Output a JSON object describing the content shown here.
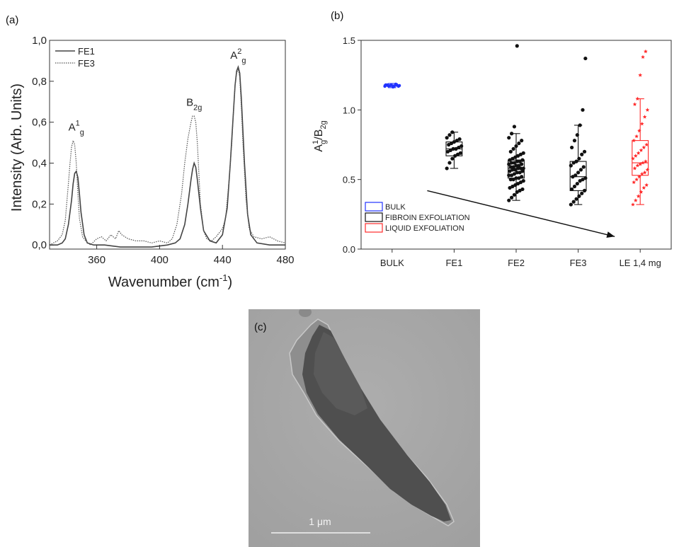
{
  "chart_data": [
    {
      "type": "line",
      "panel_label": "(a)",
      "xlabel": "Wavenumber (cm",
      "xlabel_sup": "-1",
      "xlabel_end": ")",
      "ylabel": "Intensity (Arb. Units)",
      "xlim": [
        330,
        480
      ],
      "ylim": [
        -0.02,
        1.0
      ],
      "x_ticks": [
        360,
        400,
        440,
        480
      ],
      "x_tick_labels": [
        "360",
        "400",
        "440",
        "480"
      ],
      "y_ticks": [
        0.0,
        0.2,
        0.4,
        0.6,
        0.8,
        1.0
      ],
      "y_tick_labels": [
        "0,0",
        "0,2",
        "0,4",
        "0,6",
        "0,8",
        "1,0"
      ],
      "legend_position": "top-left",
      "annotations": [
        {
          "base": "A",
          "sup": "1",
          "sub": "g",
          "x": 347,
          "y": 0.56
        },
        {
          "base": "B",
          "sup": "",
          "sub": "2g",
          "x": 422,
          "y": 0.68
        },
        {
          "base": "A",
          "sup": "2",
          "sub": "g",
          "x": 450,
          "y": 0.91
        }
      ],
      "series": [
        {
          "name": "FE1",
          "line_style": "solid",
          "color": "#444444",
          "x": [
            330,
            335,
            338,
            340,
            342,
            344,
            345,
            346,
            347,
            348,
            349,
            350,
            352,
            354,
            358,
            365,
            375,
            385,
            395,
            405,
            410,
            413,
            416,
            418,
            420,
            421,
            422,
            423,
            424,
            426,
            428,
            432,
            436,
            440,
            443,
            445,
            447,
            448,
            449,
            450,
            451,
            452,
            454,
            456,
            458,
            462,
            470,
            480
          ],
          "y": [
            0.0,
            0.0,
            0.01,
            0.03,
            0.1,
            0.22,
            0.3,
            0.35,
            0.36,
            0.33,
            0.25,
            0.16,
            0.05,
            0.01,
            0.0,
            0.0,
            -0.01,
            -0.01,
            -0.01,
            0.0,
            0.01,
            0.03,
            0.1,
            0.2,
            0.32,
            0.37,
            0.4,
            0.38,
            0.32,
            0.18,
            0.07,
            0.02,
            0.01,
            0.05,
            0.18,
            0.4,
            0.65,
            0.78,
            0.85,
            0.87,
            0.84,
            0.72,
            0.4,
            0.15,
            0.05,
            0.01,
            0.0,
            0.0
          ]
        },
        {
          "name": "FE3",
          "line_style": "dotted",
          "color": "#555555",
          "x": [
            330,
            335,
            338,
            340,
            342,
            343,
            344,
            345,
            346,
            347,
            348,
            349,
            351,
            353,
            356,
            360,
            363,
            366,
            369,
            372,
            374,
            376,
            380,
            385,
            390,
            395,
            400,
            405,
            408,
            411,
            414,
            416,
            418,
            420,
            421,
            422,
            423,
            424,
            425,
            426,
            428,
            430,
            433,
            436,
            440,
            442,
            444,
            446,
            447,
            448,
            449,
            450,
            451,
            452,
            453,
            455,
            457,
            460,
            465,
            470,
            475,
            480
          ],
          "y": [
            0.0,
            0.02,
            0.05,
            0.12,
            0.3,
            0.4,
            0.48,
            0.51,
            0.49,
            0.4,
            0.25,
            0.13,
            0.04,
            0.02,
            0.0,
            0.03,
            0.04,
            0.02,
            0.05,
            0.03,
            0.07,
            0.05,
            0.03,
            0.02,
            0.02,
            0.01,
            0.02,
            0.01,
            0.03,
            0.1,
            0.25,
            0.4,
            0.52,
            0.6,
            0.63,
            0.63,
            0.6,
            0.5,
            0.35,
            0.2,
            0.07,
            0.03,
            0.02,
            0.04,
            0.08,
            0.13,
            0.3,
            0.5,
            0.65,
            0.78,
            0.84,
            0.86,
            0.82,
            0.68,
            0.5,
            0.22,
            0.08,
            0.04,
            0.03,
            0.04,
            0.02,
            0.01
          ]
        }
      ]
    },
    {
      "type": "box",
      "panel_label": "(b)",
      "ylabel_base": "A",
      "ylabel_sup": "1",
      "ylabel_sub": "g",
      "ylabel_base2": "/B",
      "ylabel_sub2": "2g",
      "ylim": [
        0.0,
        1.5
      ],
      "y_ticks": [
        0.0,
        0.5,
        1.0,
        1.5
      ],
      "y_tick_labels": [
        "0.0",
        "0.5",
        "1.0",
        "1.5"
      ],
      "categories": [
        "BULK",
        "FE1",
        "FE2",
        "FE3",
        "LE 1,4 mg"
      ],
      "legend_position": "bottom-left",
      "legend": [
        {
          "label": "BULK",
          "color": "#2233ff"
        },
        {
          "label": "FIBROIN EXFOLIATION",
          "color": "#111111"
        },
        {
          "label": "LIQUID EXFOLIATION",
          "color": "#ff2a2a"
        }
      ],
      "arrow": {
        "from": {
          "category": 1,
          "value": 0.42
        },
        "to": {
          "category": 4,
          "value": 0.09
        }
      },
      "groups": [
        {
          "category": "BULK",
          "color": "#2233ff",
          "marker": "dot",
          "q1": 1.17,
          "median": 1.175,
          "q3": 1.18,
          "whisker_low": 1.16,
          "whisker_high": 1.19,
          "points": [
            1.17,
            1.18,
            1.175,
            1.165,
            1.185,
            1.17,
            1.18,
            1.172,
            1.178,
            1.168,
            1.182,
            1.175
          ]
        },
        {
          "category": "FE1",
          "color": "#111111",
          "marker": "dot",
          "q1": 0.67,
          "median": 0.72,
          "q3": 0.77,
          "whisker_low": 0.58,
          "whisker_high": 0.84,
          "points": [
            0.58,
            0.62,
            0.65,
            0.67,
            0.68,
            0.69,
            0.7,
            0.71,
            0.72,
            0.72,
            0.73,
            0.74,
            0.75,
            0.76,
            0.77,
            0.78,
            0.79,
            0.8,
            0.82,
            0.84
          ]
        },
        {
          "category": "FE2",
          "color": "#111111",
          "marker": "dot",
          "q1": 0.51,
          "median": 0.58,
          "q3": 0.64,
          "whisker_low": 0.35,
          "whisker_high": 0.83,
          "points": [
            0.35,
            0.37,
            0.39,
            0.41,
            0.42,
            0.43,
            0.44,
            0.45,
            0.46,
            0.47,
            0.48,
            0.49,
            0.5,
            0.5,
            0.51,
            0.51,
            0.52,
            0.53,
            0.53,
            0.54,
            0.55,
            0.55,
            0.56,
            0.56,
            0.57,
            0.57,
            0.58,
            0.58,
            0.58,
            0.59,
            0.59,
            0.6,
            0.6,
            0.61,
            0.61,
            0.62,
            0.62,
            0.63,
            0.63,
            0.64,
            0.64,
            0.65,
            0.66,
            0.67,
            0.68,
            0.69,
            0.7,
            0.72,
            0.74,
            0.76,
            0.78,
            0.8,
            0.83,
            0.88,
            1.46
          ]
        },
        {
          "category": "FE3",
          "color": "#111111",
          "marker": "dot",
          "q1": 0.42,
          "median": 0.52,
          "q3": 0.63,
          "whisker_low": 0.32,
          "whisker_high": 0.89,
          "points": [
            0.32,
            0.34,
            0.36,
            0.38,
            0.4,
            0.42,
            0.43,
            0.45,
            0.47,
            0.49,
            0.5,
            0.51,
            0.52,
            0.53,
            0.55,
            0.57,
            0.59,
            0.6,
            0.62,
            0.63,
            0.65,
            0.68,
            0.7,
            0.73,
            0.78,
            0.82,
            0.89,
            1.0,
            1.37
          ]
        },
        {
          "category": "LE 1,4 mg",
          "color": "#ff2a2a",
          "marker": "star",
          "q1": 0.53,
          "median": 0.62,
          "q3": 0.78,
          "whisker_low": 0.32,
          "whisker_high": 1.08,
          "points": [
            0.32,
            0.35,
            0.38,
            0.41,
            0.44,
            0.46,
            0.48,
            0.5,
            0.52,
            0.54,
            0.55,
            0.57,
            0.58,
            0.6,
            0.61,
            0.62,
            0.63,
            0.65,
            0.67,
            0.69,
            0.71,
            0.73,
            0.75,
            0.78,
            0.81,
            0.85,
            0.9,
            0.95,
            1.0,
            1.04,
            1.08,
            1.25,
            1.38,
            1.42
          ]
        }
      ]
    }
  ],
  "micrograph": {
    "panel_label": "(c)",
    "scale_bar_label": "1 μm",
    "background_color": "#a9a9a9",
    "flake_color": "#4c4c4c"
  }
}
